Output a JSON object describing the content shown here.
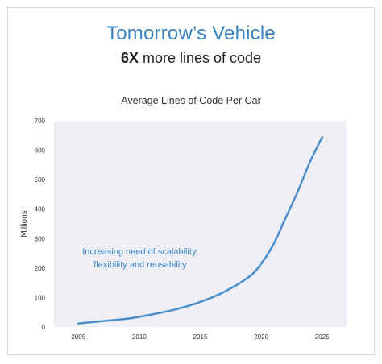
{
  "header": {
    "title": "Tomorrow’s Vehicle",
    "subtitle_bold": "6X",
    "subtitle_rest": " more lines of code"
  },
  "colors": {
    "accent": "#3a82bf",
    "plot_bg": "#eeeef4",
    "line": "#4a8fcb"
  },
  "chart_data": {
    "type": "line",
    "title": "Average Lines of Code Per Car",
    "xlabel": "",
    "ylabel": "Millions",
    "xlim": [
      2003,
      2027
    ],
    "ylim": [
      0,
      700
    ],
    "x_ticks": [
      2005,
      2010,
      2015,
      2020,
      2025
    ],
    "y_ticks": [
      0,
      100,
      200,
      300,
      400,
      500,
      600,
      700
    ],
    "grid": false,
    "series": [
      {
        "x": [
          2005,
          2007,
          2009,
          2011,
          2013,
          2015,
          2017,
          2019,
          2020,
          2021,
          2022,
          2023,
          2024,
          2025
        ],
        "y": [
          12,
          20,
          28,
          42,
          60,
          85,
          120,
          170,
          215,
          280,
          370,
          460,
          560,
          645
        ]
      }
    ],
    "annotation": {
      "line1": "Increasing need of scalability,",
      "line2": "flexibility and reusability"
    }
  }
}
